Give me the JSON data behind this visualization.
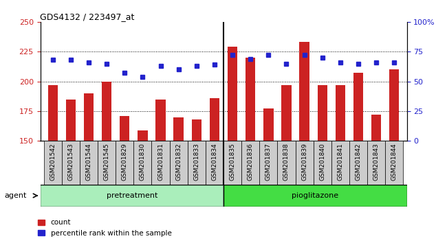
{
  "title": "GDS4132 / 223497_at",
  "categories": [
    "GSM201542",
    "GSM201543",
    "GSM201544",
    "GSM201545",
    "GSM201829",
    "GSM201830",
    "GSM201831",
    "GSM201832",
    "GSM201833",
    "GSM201834",
    "GSM201835",
    "GSM201836",
    "GSM201837",
    "GSM201838",
    "GSM201839",
    "GSM201840",
    "GSM201841",
    "GSM201842",
    "GSM201843",
    "GSM201844"
  ],
  "count_values": [
    197,
    185,
    190,
    200,
    171,
    159,
    185,
    170,
    168,
    186,
    229,
    220,
    177,
    197,
    233,
    197,
    197,
    207,
    172,
    210
  ],
  "percentile_values": [
    68,
    68,
    66,
    65,
    57,
    54,
    63,
    60,
    63,
    64,
    72,
    69,
    72,
    65,
    72,
    70,
    66,
    65,
    66,
    66
  ],
  "pretreatment_count": 10,
  "pioglitazone_count": 10,
  "ylim_left": [
    150,
    250
  ],
  "ylim_right": [
    0,
    100
  ],
  "yticks_left": [
    150,
    175,
    200,
    225,
    250
  ],
  "yticks_right": [
    0,
    25,
    50,
    75,
    100
  ],
  "bar_color": "#cc2222",
  "dot_color": "#2222cc",
  "pretreatment_color": "#aaeebb",
  "pioglitazone_color": "#44dd44",
  "agent_label": "agent",
  "pretreatment_label": "pretreatment",
  "pioglitazone_label": "pioglitazone",
  "legend_count": "count",
  "legend_percentile": "percentile rank within the sample",
  "bar_width": 0.55,
  "tick_bg_color": "#cccccc",
  "fig_width": 6.5,
  "fig_height": 3.54
}
